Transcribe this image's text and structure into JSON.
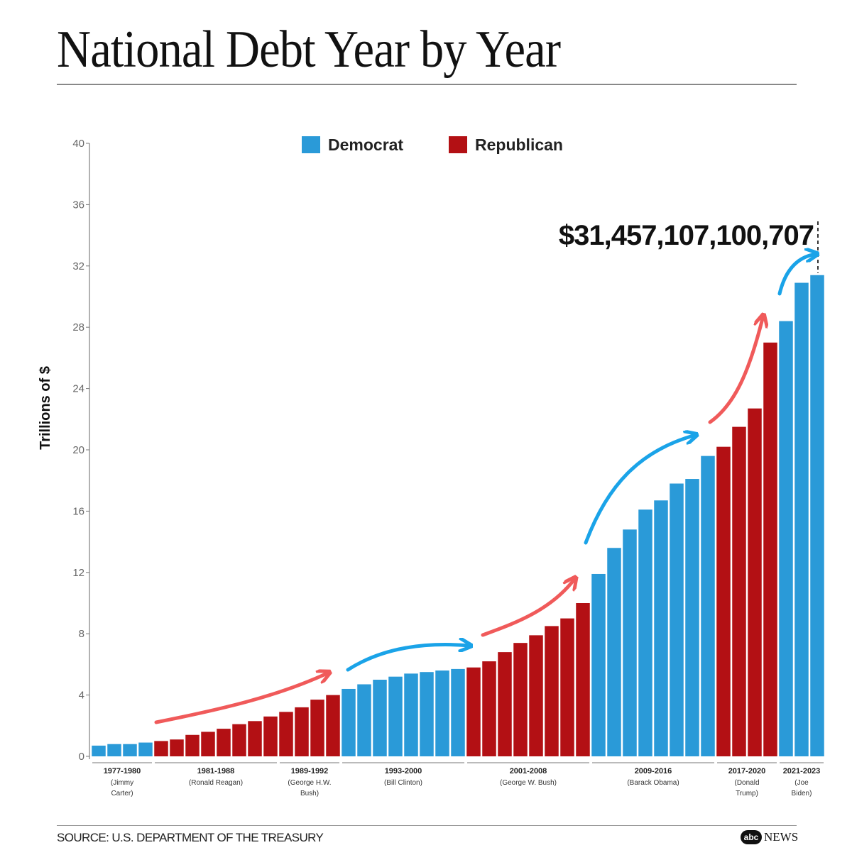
{
  "title": "National Debt Year by Year",
  "source": "SOURCE: U.S. DEPARTMENT OF THE TREASURY",
  "logo": {
    "mark": "abc",
    "text": "NEWS"
  },
  "colors": {
    "democrat": "#2a9ad8",
    "republican": "#b31014",
    "arrow_democrat": "#1aa3e8",
    "arrow_republican": "#f05a5a"
  },
  "chart_data": {
    "type": "bar",
    "title": "National Debt Year by Year",
    "ylabel": "Trillions of $",
    "ylim": [
      0,
      40
    ],
    "yticks": [
      0,
      4,
      8,
      12,
      16,
      20,
      24,
      28,
      32,
      36,
      40
    ],
    "grid": false,
    "legend": {
      "position": "top-center",
      "entries": [
        "Democrat",
        "Republican"
      ]
    },
    "annotation": "$31,457,107,100,707",
    "series": [
      {
        "name": "Democrat",
        "years": [
          1977,
          1978,
          1979,
          1980,
          1993,
          1994,
          1995,
          1996,
          1997,
          1998,
          1999,
          2000,
          2009,
          2010,
          2011,
          2012,
          2013,
          2014,
          2015,
          2016,
          2021,
          2022,
          2023
        ],
        "values": [
          0.7,
          0.8,
          0.8,
          0.9,
          4.4,
          4.7,
          5.0,
          5.2,
          5.4,
          5.5,
          5.6,
          5.7,
          11.9,
          13.6,
          14.8,
          16.1,
          16.7,
          17.8,
          18.1,
          19.6,
          28.4,
          30.9,
          31.4
        ]
      },
      {
        "name": "Republican",
        "years": [
          1981,
          1982,
          1983,
          1984,
          1985,
          1986,
          1987,
          1988,
          1989,
          1990,
          1991,
          1992,
          2001,
          2002,
          2003,
          2004,
          2005,
          2006,
          2007,
          2008,
          2017,
          2018,
          2019,
          2020
        ],
        "values": [
          1.0,
          1.1,
          1.4,
          1.6,
          1.8,
          2.1,
          2.3,
          2.6,
          2.9,
          3.2,
          3.7,
          4.0,
          5.8,
          6.2,
          6.8,
          7.4,
          7.9,
          8.5,
          9.0,
          10.0,
          20.2,
          21.5,
          22.7,
          27.0
        ]
      }
    ],
    "periods": [
      {
        "years": "1977-1980",
        "name": "(Jimmy Carter)"
      },
      {
        "years": "1981-1988",
        "name": "(Ronald Reagan)"
      },
      {
        "years": "1989-1992",
        "name": "(George H.W. Bush)"
      },
      {
        "years": "1993-2000",
        "name": "(Bill Clinton)"
      },
      {
        "years": "2001-2008",
        "name": "(George W. Bush)"
      },
      {
        "years": "2009-2016",
        "name": "(Barack Obama)"
      },
      {
        "years": "2017-2020",
        "name": "(Donald Trump)"
      },
      {
        "years": "2021-2023",
        "name": "(Joe Biden)"
      }
    ]
  }
}
